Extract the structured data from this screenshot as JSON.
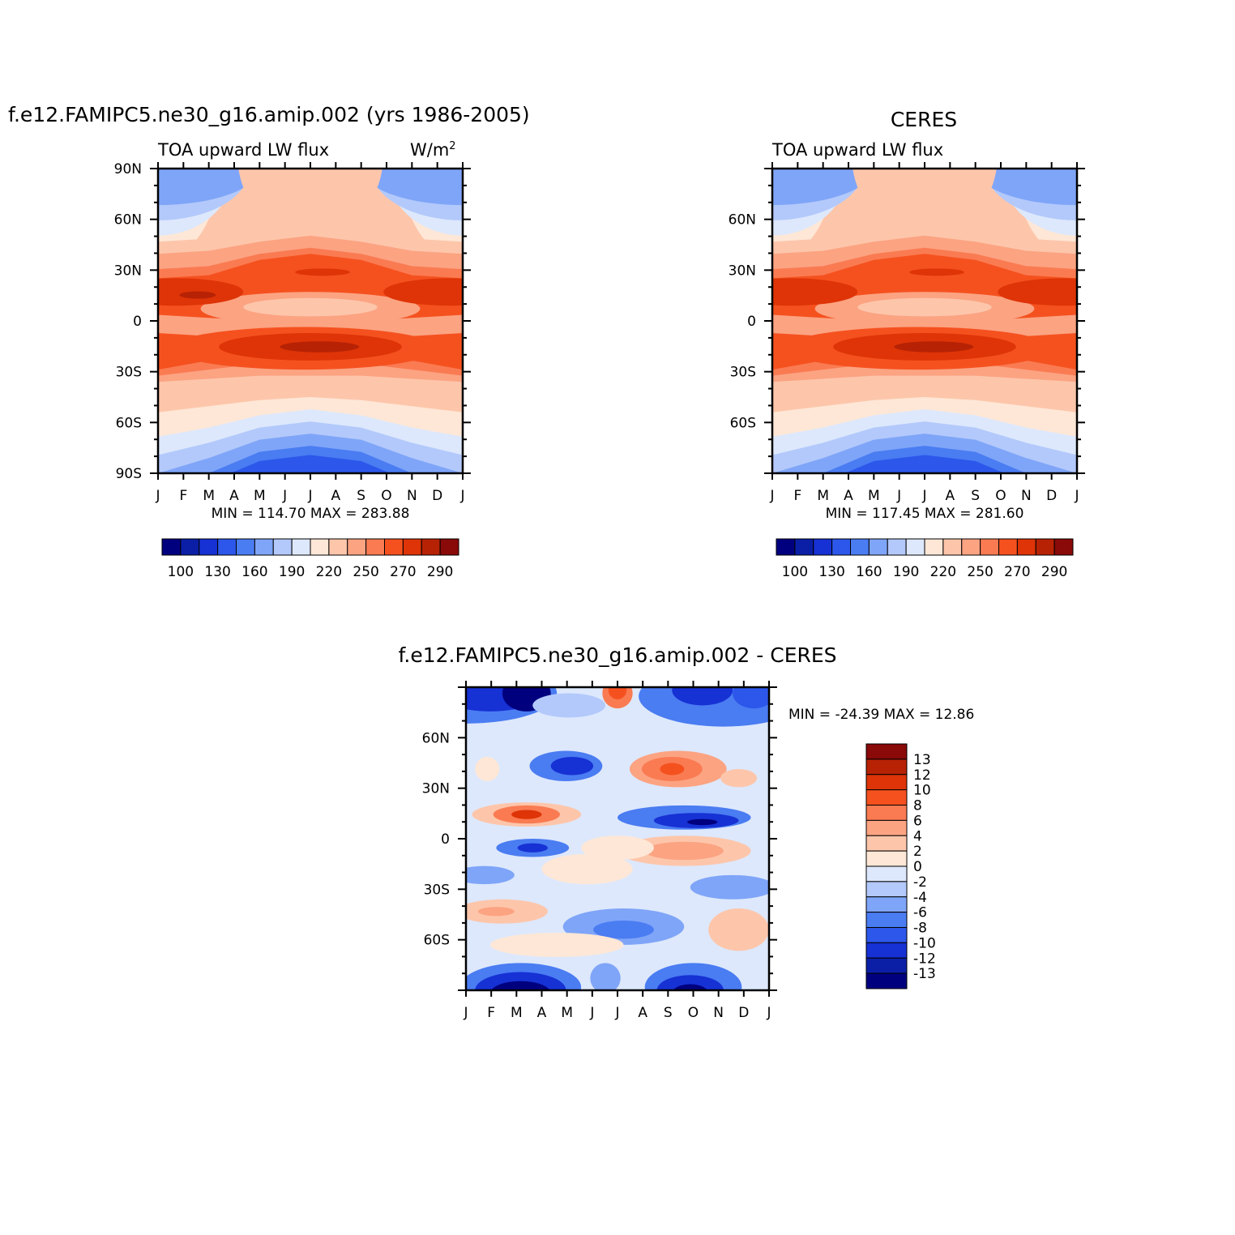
{
  "colors": {
    "abs_levels": [
      "#00007f",
      "#0a1fa6",
      "#1631d4",
      "#2c57ea",
      "#4a7cf2",
      "#7fa5f8",
      "#b3c9fb",
      "#dde8fc",
      "#fee7d6",
      "#fdc6ab",
      "#fca382",
      "#fa7b52",
      "#f5511f",
      "#de3407",
      "#b72205",
      "#8a0909"
    ],
    "diff_levels": [
      "#00007f",
      "#0a1fa6",
      "#1631d4",
      "#2c57ea",
      "#4a7cf2",
      "#7fa5f8",
      "#b3c9fb",
      "#dde8fc",
      "#fee7d6",
      "#fdc6ab",
      "#fca382",
      "#fa7b52",
      "#f5511f",
      "#de3407",
      "#b72205",
      "#8a0909"
    ]
  },
  "chart_data": [
    {
      "type": "heatmap",
      "title": "f.e12.FAMIPC5.ne30_g16.amip.002 (yrs 1986-2005)",
      "left_label": "TOA upward LW flux",
      "units_base": "W/m",
      "units_exp": "2",
      "x_tick_labels": [
        "J",
        "F",
        "M",
        "A",
        "M",
        "J",
        "J",
        "A",
        "S",
        "O",
        "N",
        "D",
        "J"
      ],
      "y_tick_labels": [
        "90N",
        "60N",
        "30N",
        "0",
        "30S",
        "60S",
        "90S"
      ],
      "ylim": [
        -90,
        90
      ],
      "stats": "MIN = 114.70 MAX = 283.88",
      "min": 114.7,
      "max": 283.88,
      "colorbar_labels": [
        "100",
        "130",
        "160",
        "190",
        "220",
        "250",
        "270",
        "290"
      ]
    },
    {
      "type": "heatmap",
      "title": "CERES",
      "left_label": "TOA upward LW flux",
      "x_tick_labels": [
        "J",
        "F",
        "M",
        "A",
        "M",
        "J",
        "J",
        "A",
        "S",
        "O",
        "N",
        "D",
        "J"
      ],
      "y_tick_labels": [
        "60N",
        "30N",
        "0",
        "30S",
        "60S"
      ],
      "ylim": [
        -90,
        90
      ],
      "stats": "MIN = 117.45 MAX = 281.60",
      "min": 117.45,
      "max": 281.6,
      "colorbar_labels": [
        "100",
        "130",
        "160",
        "190",
        "220",
        "250",
        "270",
        "290"
      ]
    },
    {
      "type": "heatmap",
      "title": "f.e12.FAMIPC5.ne30_g16.amip.002 - CERES",
      "x_tick_labels": [
        "J",
        "F",
        "M",
        "A",
        "M",
        "J",
        "J",
        "A",
        "S",
        "O",
        "N",
        "D",
        "J"
      ],
      "y_tick_labels": [
        "60N",
        "30N",
        "0",
        "30S",
        "60S"
      ],
      "ylim": [
        -90,
        90
      ],
      "stats": "MIN = -24.39 MAX =  12.86",
      "min": -24.39,
      "max": 12.86,
      "colorbar_labels": [
        "13",
        "12",
        "10",
        "8",
        "6",
        "4",
        "2",
        "0",
        "-2",
        "-4",
        "-6",
        "-8",
        "-10",
        "-12",
        "-13"
      ]
    }
  ]
}
